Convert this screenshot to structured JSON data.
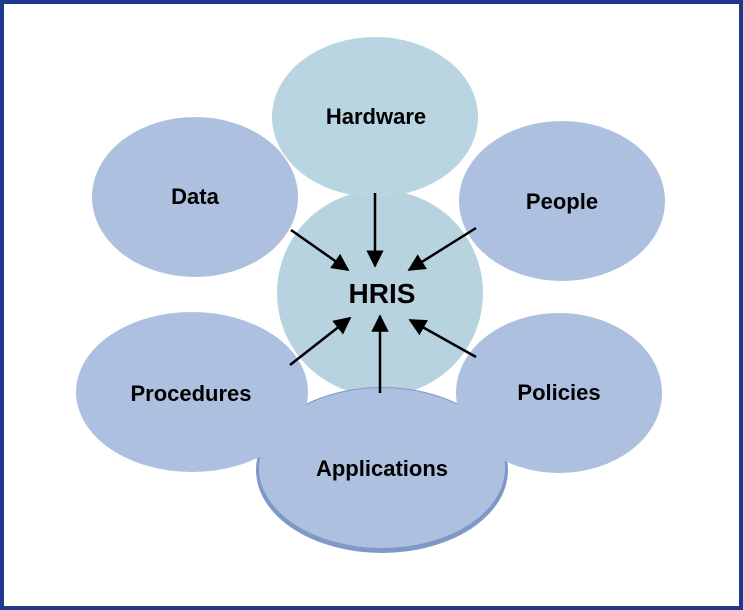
{
  "diagram": {
    "center": {
      "label": "HRIS"
    },
    "components": [
      {
        "id": "hardware",
        "label": "Hardware"
      },
      {
        "id": "people",
        "label": "People"
      },
      {
        "id": "policies",
        "label": "Policies"
      },
      {
        "id": "applications",
        "label": "Applications"
      },
      {
        "id": "procedures",
        "label": "Procedures"
      },
      {
        "id": "data",
        "label": "Data"
      }
    ]
  },
  "colors": {
    "frame_border": "#1f3a8c",
    "center_fill": "#b8d3e0",
    "ellipse_fill": "#adc0df",
    "hardware_fill": "#b9d5e2",
    "shadow_fill": "#7e99c7",
    "arrow": "#000000",
    "background": "#ffffff"
  }
}
